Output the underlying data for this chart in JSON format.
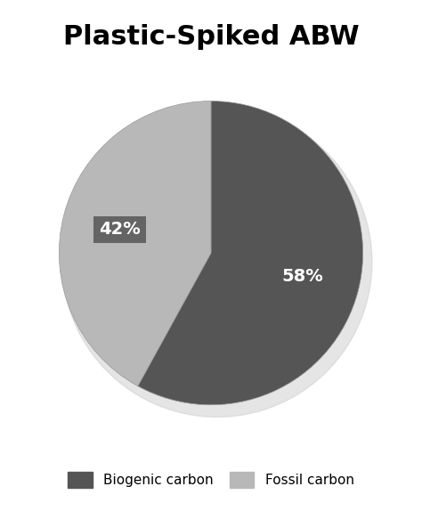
{
  "title": "Plastic-Spiked ABW",
  "slices": [
    58,
    42
  ],
  "labels": [
    "58%",
    "42%"
  ],
  "colors": [
    "#555555",
    "#b8b8b8"
  ],
  "legend_labels": [
    "Biogenic carbon",
    "Fossil carbon"
  ],
  "startangle": 90,
  "title_fontsize": 22,
  "label_fontsize": 14,
  "background_color": "#ffffff",
  "label_bg_color": "#555555",
  "label_text_color": "#ffffff"
}
